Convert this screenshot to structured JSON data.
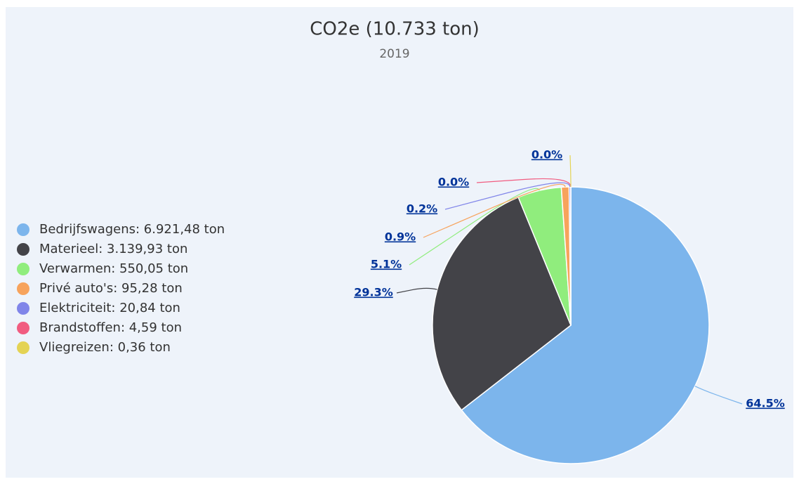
{
  "chart_data": {
    "type": "pie",
    "title": "CO2e (10.733 ton)",
    "subtitle": "2019",
    "categories": [
      "Bedrijfswagens: 6.921,48 ton",
      "Materieel: 3.139,93 ton",
      "Verwarmen: 550,05 ton",
      "Privé auto's: 95,28 ton",
      "Elektriciteit: 20,84 ton",
      "Brandstoffen: 4,59 ton",
      "Vliegreizen: 0,36 ton"
    ],
    "values": [
      64.5,
      29.3,
      5.1,
      0.9,
      0.2,
      0.0,
      0.0
    ],
    "value_labels": [
      "64.5%",
      "29.3%",
      "5.1%",
      "0.9%",
      "0.2%",
      "0.0%",
      "0.0%"
    ],
    "colors": [
      "#7cb5ec",
      "#434348",
      "#90ed7d",
      "#f7a35c",
      "#8085e9",
      "#f15c80",
      "#e4d354"
    ],
    "legend": "left"
  }
}
